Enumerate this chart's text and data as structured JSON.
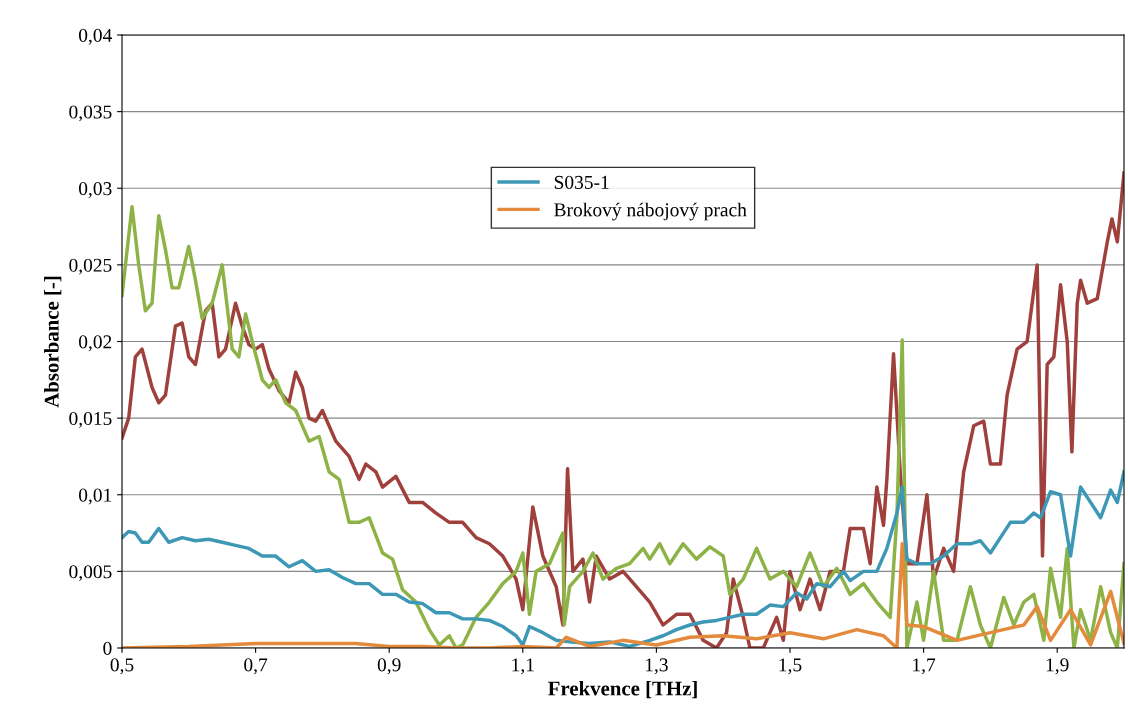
{
  "chart_data": {
    "type": "line",
    "xlabel": "Frekvence [THz]",
    "ylabel": "Absorbance [-]",
    "xlim": [
      0.5,
      2.0
    ],
    "ylim": [
      0,
      0.04
    ],
    "xticks": [
      {
        "value": 0.5,
        "label": "0,5"
      },
      {
        "value": 0.7,
        "label": "0,7"
      },
      {
        "value": 0.9,
        "label": "0,9"
      },
      {
        "value": 1.1,
        "label": "1,1"
      },
      {
        "value": 1.3,
        "label": "1,3"
      },
      {
        "value": 1.5,
        "label": "1,5"
      },
      {
        "value": 1.7,
        "label": "1,7"
      },
      {
        "value": 1.9,
        "label": "1,9"
      }
    ],
    "yticks": [
      {
        "value": 0,
        "label": "0"
      },
      {
        "value": 0.005,
        "label": "0,005"
      },
      {
        "value": 0.01,
        "label": "0,01"
      },
      {
        "value": 0.015,
        "label": "0,015"
      },
      {
        "value": 0.02,
        "label": "0,02"
      },
      {
        "value": 0.025,
        "label": "0,025"
      },
      {
        "value": 0.03,
        "label": "0,03"
      },
      {
        "value": 0.035,
        "label": "0,035"
      },
      {
        "value": 0.04,
        "label": "0,04"
      }
    ],
    "grid": "y",
    "legend": "top",
    "line_style": "solid",
    "series": [
      {
        "color": "#a0403c",
        "x": [
          0.5,
          0.51,
          0.52,
          0.53,
          0.545,
          0.555,
          0.565,
          0.58,
          0.59,
          0.6,
          0.61,
          0.625,
          0.635,
          0.645,
          0.655,
          0.67,
          0.68,
          0.69,
          0.7,
          0.71,
          0.72,
          0.735,
          0.75,
          0.76,
          0.77,
          0.78,
          0.79,
          0.8,
          0.82,
          0.84,
          0.855,
          0.865,
          0.88,
          0.89,
          0.91,
          0.93,
          0.95,
          0.97,
          0.99,
          1.01,
          1.03,
          1.05,
          1.07,
          1.09,
          1.1,
          1.115,
          1.13,
          1.15,
          1.16,
          1.167,
          1.175,
          1.19,
          1.2,
          1.21,
          1.23,
          1.25,
          1.27,
          1.29,
          1.31,
          1.33,
          1.35,
          1.37,
          1.39,
          1.405,
          1.415,
          1.43,
          1.44,
          1.46,
          1.48,
          1.49,
          1.5,
          1.515,
          1.53,
          1.545,
          1.56,
          1.58,
          1.59,
          1.61,
          1.62,
          1.63,
          1.64,
          1.645,
          1.655,
          1.665,
          1.675,
          1.69,
          1.705,
          1.715,
          1.73,
          1.745,
          1.76,
          1.775,
          1.79,
          1.8,
          1.815,
          1.825,
          1.84,
          1.855,
          1.87,
          1.878,
          1.885,
          1.895,
          1.905,
          1.915,
          1.922,
          1.93,
          1.935,
          1.945,
          1.96,
          1.975,
          1.982,
          1.99,
          2.0
        ],
        "values": [
          0.0137,
          0.015,
          0.019,
          0.0195,
          0.017,
          0.016,
          0.0165,
          0.021,
          0.0212,
          0.019,
          0.0185,
          0.022,
          0.0225,
          0.019,
          0.0195,
          0.0225,
          0.021,
          0.0198,
          0.0195,
          0.0198,
          0.0182,
          0.0168,
          0.016,
          0.018,
          0.017,
          0.015,
          0.0148,
          0.0155,
          0.0135,
          0.0125,
          0.011,
          0.012,
          0.0115,
          0.0105,
          0.0112,
          0.0095,
          0.0095,
          0.0088,
          0.0082,
          0.0082,
          0.0072,
          0.0068,
          0.006,
          0.0045,
          0.0025,
          0.0092,
          0.006,
          0.004,
          0.0015,
          0.0117,
          0.005,
          0.0058,
          0.003,
          0.006,
          0.0045,
          0.005,
          0.004,
          0.003,
          0.0015,
          0.0022,
          0.0022,
          0.0005,
          0.0,
          0.001,
          0.0045,
          0.002,
          0.0,
          0.0,
          0.002,
          0.0005,
          0.005,
          0.0025,
          0.0045,
          0.0025,
          0.005,
          0.005,
          0.0078,
          0.0078,
          0.0055,
          0.0105,
          0.008,
          0.011,
          0.0192,
          0.0115,
          0.0055,
          0.0055,
          0.01,
          0.0045,
          0.0065,
          0.005,
          0.0115,
          0.0145,
          0.0148,
          0.012,
          0.012,
          0.0165,
          0.0195,
          0.02,
          0.025,
          0.006,
          0.0185,
          0.019,
          0.0237,
          0.02,
          0.0128,
          0.0225,
          0.024,
          0.0225,
          0.0228,
          0.0265,
          0.028,
          0.0265,
          0.031
        ]
      },
      {
        "color": "#8db346",
        "x": [
          0.5,
          0.515,
          0.525,
          0.535,
          0.545,
          0.555,
          0.565,
          0.575,
          0.585,
          0.6,
          0.61,
          0.62,
          0.635,
          0.65,
          0.665,
          0.675,
          0.685,
          0.695,
          0.71,
          0.72,
          0.73,
          0.745,
          0.76,
          0.78,
          0.795,
          0.81,
          0.825,
          0.84,
          0.855,
          0.87,
          0.89,
          0.905,
          0.92,
          0.94,
          0.96,
          0.975,
          0.99,
          1.0,
          1.01,
          1.03,
          1.05,
          1.07,
          1.09,
          1.1,
          1.11,
          1.12,
          1.14,
          1.16,
          1.162,
          1.17,
          1.19,
          1.205,
          1.22,
          1.24,
          1.26,
          1.28,
          1.29,
          1.305,
          1.32,
          1.34,
          1.36,
          1.38,
          1.4,
          1.41,
          1.43,
          1.45,
          1.47,
          1.49,
          1.51,
          1.53,
          1.55,
          1.57,
          1.59,
          1.61,
          1.63,
          1.65,
          1.66,
          1.668,
          1.675,
          1.69,
          1.7,
          1.715,
          1.73,
          1.75,
          1.77,
          1.785,
          1.8,
          1.82,
          1.835,
          1.85,
          1.865,
          1.88,
          1.89,
          1.905,
          1.915,
          1.925,
          1.935,
          1.95,
          1.965,
          1.98,
          1.99,
          2.0
        ],
        "values": [
          0.023,
          0.0288,
          0.025,
          0.022,
          0.0225,
          0.0282,
          0.026,
          0.0235,
          0.0235,
          0.0262,
          0.024,
          0.0215,
          0.0225,
          0.025,
          0.0195,
          0.019,
          0.0218,
          0.02,
          0.0175,
          0.017,
          0.0175,
          0.016,
          0.0155,
          0.0135,
          0.0138,
          0.0115,
          0.011,
          0.0082,
          0.0082,
          0.0085,
          0.0062,
          0.0058,
          0.0038,
          0.003,
          0.0012,
          0.0002,
          0.0008,
          0.0,
          0.0002,
          0.002,
          0.003,
          0.0042,
          0.005,
          0.0062,
          0.0022,
          0.005,
          0.0055,
          0.0075,
          0.0015,
          0.004,
          0.005,
          0.0062,
          0.0045,
          0.0052,
          0.0055,
          0.0065,
          0.0058,
          0.0068,
          0.0055,
          0.0068,
          0.0058,
          0.0066,
          0.006,
          0.0035,
          0.0045,
          0.0065,
          0.0045,
          0.005,
          0.004,
          0.0062,
          0.004,
          0.0052,
          0.0035,
          0.0042,
          0.003,
          0.002,
          0.0085,
          0.0201,
          0.0,
          0.003,
          0.0005,
          0.005,
          0.0005,
          0.0005,
          0.004,
          0.0015,
          0.0,
          0.0033,
          0.0015,
          0.003,
          0.0035,
          0.0005,
          0.0052,
          0.002,
          0.0065,
          0.0,
          0.0025,
          0.0005,
          0.004,
          0.001,
          0.0,
          0.0055
        ]
      },
      {
        "name": "S035-1",
        "color": "#3d98b6",
        "x": [
          0.5,
          0.51,
          0.52,
          0.53,
          0.54,
          0.555,
          0.57,
          0.59,
          0.61,
          0.63,
          0.65,
          0.67,
          0.69,
          0.71,
          0.73,
          0.75,
          0.77,
          0.79,
          0.81,
          0.83,
          0.85,
          0.87,
          0.89,
          0.91,
          0.93,
          0.95,
          0.97,
          0.99,
          1.01,
          1.03,
          1.05,
          1.07,
          1.09,
          1.1,
          1.11,
          1.13,
          1.15,
          1.17,
          1.2,
          1.23,
          1.26,
          1.29,
          1.31,
          1.33,
          1.35,
          1.37,
          1.39,
          1.41,
          1.43,
          1.45,
          1.47,
          1.49,
          1.51,
          1.525,
          1.54,
          1.56,
          1.58,
          1.59,
          1.61,
          1.63,
          1.645,
          1.66,
          1.668,
          1.675,
          1.69,
          1.71,
          1.73,
          1.75,
          1.77,
          1.785,
          1.8,
          1.815,
          1.83,
          1.85,
          1.865,
          1.875,
          1.89,
          1.905,
          1.92,
          1.935,
          1.95,
          1.965,
          1.98,
          1.99,
          2.0
        ],
        "values": [
          0.0072,
          0.0076,
          0.0075,
          0.0069,
          0.0069,
          0.0078,
          0.0069,
          0.0072,
          0.007,
          0.0071,
          0.0069,
          0.0067,
          0.0065,
          0.006,
          0.006,
          0.0053,
          0.0057,
          0.005,
          0.0051,
          0.0046,
          0.0042,
          0.0042,
          0.0035,
          0.0035,
          0.003,
          0.0029,
          0.0023,
          0.0023,
          0.0019,
          0.0019,
          0.0018,
          0.0014,
          0.0008,
          0.0002,
          0.0014,
          0.001,
          0.0005,
          0.0004,
          0.0003,
          0.0004,
          0.0001,
          0.0005,
          0.0008,
          0.0012,
          0.0015,
          0.0017,
          0.0018,
          0.002,
          0.0022,
          0.0022,
          0.0028,
          0.0027,
          0.0036,
          0.0032,
          0.0042,
          0.004,
          0.005,
          0.0044,
          0.005,
          0.005,
          0.0065,
          0.0088,
          0.0105,
          0.0058,
          0.0055,
          0.0055,
          0.006,
          0.0068,
          0.0068,
          0.007,
          0.0062,
          0.0072,
          0.0082,
          0.0082,
          0.0088,
          0.0085,
          0.0102,
          0.01,
          0.006,
          0.0105,
          0.0095,
          0.0085,
          0.0103,
          0.0095,
          0.0115
        ]
      },
      {
        "name": "Brokový nábojový prach",
        "color": "#e38a3c",
        "x": [
          0.5,
          0.6,
          0.7,
          0.75,
          0.8,
          0.85,
          0.9,
          0.95,
          1.0,
          1.05,
          1.1,
          1.15,
          1.165,
          1.2,
          1.25,
          1.3,
          1.35,
          1.4,
          1.45,
          1.5,
          1.55,
          1.6,
          1.64,
          1.66,
          1.668,
          1.675,
          1.7,
          1.75,
          1.8,
          1.85,
          1.87,
          1.89,
          1.92,
          1.95,
          1.98,
          2.0
        ],
        "values": [
          0.0,
          0.0001,
          0.0003,
          0.0003,
          0.0003,
          0.0003,
          0.0001,
          0.0001,
          0.0,
          0.0,
          0.0001,
          0.0,
          0.0007,
          0.0001,
          0.0005,
          0.0002,
          0.0007,
          0.0008,
          0.0006,
          0.001,
          0.0006,
          0.0012,
          0.0008,
          0.0,
          0.0068,
          0.0015,
          0.0014,
          0.0005,
          0.001,
          0.0015,
          0.0027,
          0.0005,
          0.0025,
          0.0002,
          0.0037,
          0.0003
        ]
      }
    ]
  }
}
